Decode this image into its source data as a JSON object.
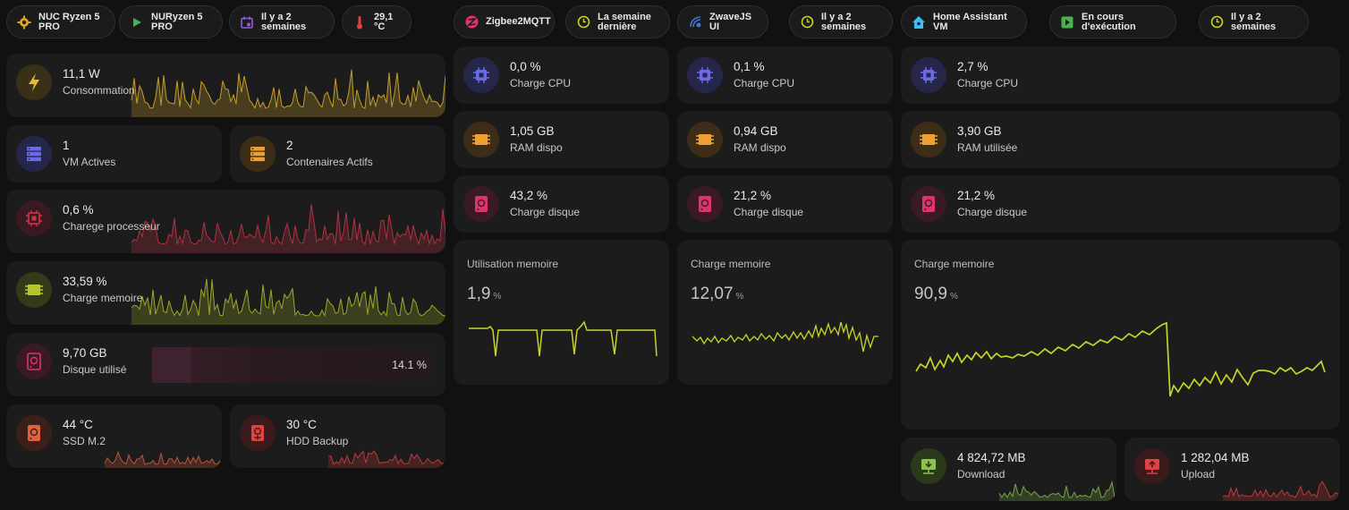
{
  "chips": [
    {
      "label": "NUC Ryzen 5\nPRO",
      "icon": "gear-chip-icon",
      "color": "#e8a51c"
    },
    {
      "label": "NURyzen 5\nPRO",
      "icon": "play-icon",
      "color": "#4caf50"
    },
    {
      "label": "Il y a 2\nsemaines",
      "icon": "calendar-icon",
      "color": "#8e5fd6"
    },
    {
      "label": "29,1 °C",
      "icon": "thermometer-icon",
      "color": "#e04040"
    },
    {
      "label": "Zigbee2MQTT",
      "icon": "zigbee-icon",
      "color": "#e0336a"
    },
    {
      "label": "La semaine\ndernière",
      "icon": "clock-icon",
      "color": "#c8d32a"
    },
    {
      "label": "ZwaveJS UI",
      "icon": "zwave-icon",
      "color": "#3a7bd5"
    },
    {
      "label": "Il y a 2\nsemaines",
      "icon": "clock-icon",
      "color": "#c8d32a"
    },
    {
      "label": "Home Assistant VM",
      "icon": "home-assistant-icon",
      "color": "#41bdf5"
    },
    {
      "label": "En cours d'exécution",
      "icon": "play-box-icon",
      "color": "#4caf50"
    },
    {
      "label": "Il y a 2 semaines",
      "icon": "clock-icon",
      "color": "#c8d32a"
    }
  ],
  "left": {
    "consumption": {
      "value": "11,1 W",
      "label": "Consommation",
      "color": "#e8b92c"
    },
    "vms": {
      "value": "1",
      "label": "VM Actives",
      "color": "#6a6ae8"
    },
    "containers": {
      "value": "2",
      "label": "Contenaires Actifs",
      "color": "#f0a030"
    },
    "cpu": {
      "value": "0,6 %",
      "label": "Charege processeur",
      "color": "#d0364a"
    },
    "memory": {
      "value": "33,59 %",
      "label": "Charge memoire",
      "color": "#b5c62a"
    },
    "disk": {
      "value": "9,70 GB",
      "label": "Disque utilisé",
      "percent": "14.1 %",
      "color": "#e0336a"
    },
    "ssd": {
      "value": "44 °C",
      "label": "SSD M.2",
      "color": "#e06040"
    },
    "hdd": {
      "value": "30 °C",
      "label": "HDD Backup",
      "color": "#e04040"
    }
  },
  "columns": [
    {
      "cpu": {
        "value": "0,0 %",
        "label": "Charge CPU"
      },
      "ram": {
        "value": "1,05 GB",
        "label": "RAM dispo"
      },
      "disk": {
        "value": "43,2 %",
        "label": "Charge disque"
      },
      "mem": {
        "title": "Utilisation memoire",
        "value": "1,9",
        "unit": "%"
      }
    },
    {
      "cpu": {
        "value": "0,1 %",
        "label": "Charge CPU"
      },
      "ram": {
        "value": "0,94 GB",
        "label": "RAM dispo"
      },
      "disk": {
        "value": "21,2 %",
        "label": "Charge disque"
      },
      "mem": {
        "title": "Charge memoire",
        "value": "12,07",
        "unit": "%"
      }
    },
    {
      "cpu": {
        "value": "2,7 %",
        "label": "Charge CPU"
      },
      "ram": {
        "value": "3,90 GB",
        "label": "RAM utilisée"
      },
      "disk": {
        "value": "21,2 %",
        "label": "Charge disque"
      },
      "mem": {
        "title": "Charge memoire",
        "value": "90,9",
        "unit": "%"
      }
    }
  ],
  "network": {
    "download": {
      "value": "4 824,72 MB",
      "label": "Download",
      "color": "#8bc34a"
    },
    "upload": {
      "value": "1 282,04 MB",
      "label": "Upload",
      "color": "#e04040"
    }
  },
  "colors": {
    "cpu": "#6a6ae8",
    "ram": "#f0a030",
    "disk": "#e0336a",
    "line": "#c8d32a"
  }
}
